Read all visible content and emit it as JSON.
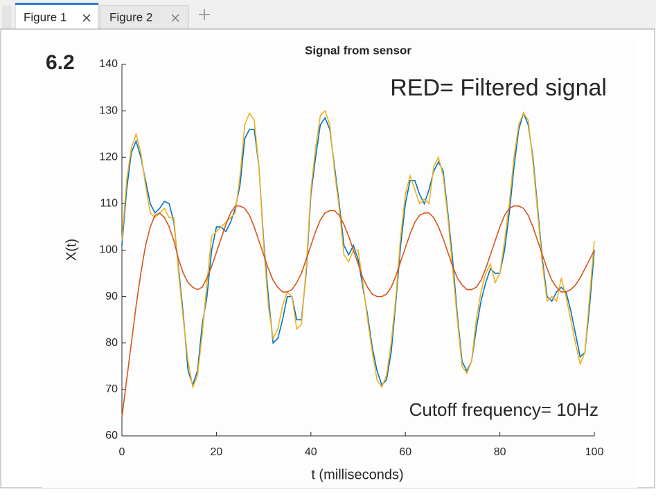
{
  "tabs": [
    "Figure 1",
    "Figure 2"
  ],
  "badge": "6.2",
  "chart_data": {
    "type": "line",
    "title": "Signal from sensor",
    "annotations": [
      "RED= Filtered signal",
      "Cutoff frequency= 10Hz"
    ],
    "xlabel": "t (milliseconds)",
    "ylabel": "X(t)",
    "x": [
      0,
      1,
      2,
      3,
      4,
      5,
      6,
      7,
      8,
      9,
      10,
      11,
      12,
      13,
      14,
      15,
      16,
      17,
      18,
      19,
      20,
      21,
      22,
      23,
      24,
      25,
      26,
      27,
      28,
      29,
      30,
      31,
      32,
      33,
      34,
      35,
      36,
      37,
      38,
      39,
      40,
      41,
      42,
      43,
      44,
      45,
      46,
      47,
      48,
      49,
      50,
      51,
      52,
      53,
      54,
      55,
      56,
      57,
      58,
      59,
      60,
      61,
      62,
      63,
      64,
      65,
      66,
      67,
      68,
      69,
      70,
      71,
      72,
      73,
      74,
      75,
      76,
      77,
      78,
      79,
      80,
      81,
      82,
      83,
      84,
      85,
      86,
      87,
      88,
      89,
      90,
      91,
      92,
      93,
      94,
      95,
      96,
      97,
      98,
      99,
      100
    ],
    "series": [
      {
        "color": "#0072bd",
        "values": [
          101,
          113,
          121,
          123.5,
          120,
          115,
          110,
          108,
          109,
          110.5,
          110,
          106,
          96,
          86,
          74,
          71,
          74,
          84,
          90,
          100,
          105,
          105,
          104,
          106,
          109,
          114,
          124,
          126,
          126,
          118,
          102,
          90,
          80,
          81,
          85,
          90,
          90,
          85,
          85,
          95,
          112,
          120,
          127,
          128.5,
          126,
          118,
          110,
          101,
          99,
          101,
          98,
          92,
          86,
          79,
          74,
          71,
          72,
          78,
          89,
          101,
          110,
          115,
          115,
          112,
          110,
          113,
          117,
          119,
          117,
          108,
          98,
          86,
          76,
          74,
          76,
          83,
          89,
          93,
          96,
          95,
          95,
          100,
          108,
          118,
          126,
          129.5,
          127,
          120,
          109,
          98,
          90,
          89,
          91,
          92,
          91,
          87,
          82,
          77,
          78,
          88,
          100
        ]
      },
      {
        "color": "#edb120",
        "values": [
          102,
          115,
          122,
          125,
          121,
          114,
          108,
          107,
          108,
          109,
          107,
          107,
          95,
          85,
          76,
          70.5,
          73,
          82,
          93,
          103,
          104,
          105,
          106,
          107,
          108,
          116,
          127,
          129.5,
          128,
          118,
          101,
          88,
          81,
          83,
          88,
          91,
          90,
          83,
          84,
          96,
          113,
          122,
          129,
          130,
          127,
          117,
          109,
          99,
          97.5,
          100,
          100,
          93,
          85,
          78,
          72,
          70.5,
          73,
          80,
          90,
          103,
          112,
          116,
          113,
          110,
          111,
          110,
          118,
          120,
          116,
          107,
          96,
          85,
          75,
          73.5,
          76,
          85,
          91,
          95,
          97,
          93,
          95,
          102,
          110,
          120,
          127,
          129.5,
          128,
          119,
          108,
          97,
          89,
          90,
          89,
          94,
          90,
          85,
          80,
          75.5,
          78,
          90,
          102
        ]
      },
      {
        "color": "#d95319",
        "values": [
          64,
          72,
          80,
          88,
          95,
          101,
          105,
          107.5,
          108,
          107,
          105,
          102,
          98,
          95,
          93,
          92,
          91.5,
          92,
          94,
          96.5,
          99.5,
          102.5,
          105.5,
          108,
          109.5,
          109.5,
          109,
          107.5,
          105,
          102,
          99,
          96,
          93.5,
          92,
          91,
          91,
          91.5,
          93,
          95,
          98,
          101,
          104,
          106.5,
          108,
          108.5,
          108.5,
          107.5,
          105.5,
          103,
          100,
          97,
          94,
          92,
          90.5,
          90,
          90,
          90.5,
          92,
          94.5,
          97.5,
          100.5,
          103.5,
          106,
          107.5,
          108,
          108,
          107,
          105,
          102.5,
          99.5,
          96.5,
          94,
          92.5,
          91.5,
          91.5,
          92,
          93.5,
          96,
          99,
          102,
          105,
          107.5,
          109,
          109.5,
          109.5,
          109,
          107.5,
          105,
          102,
          99,
          96,
          93.5,
          92,
          91,
          91,
          91.5,
          92.5,
          94,
          96,
          98,
          100
        ]
      }
    ],
    "xlim": [
      0,
      100
    ],
    "xticks": [
      0,
      20,
      40,
      60,
      80,
      100
    ],
    "ylim": [
      60,
      140
    ],
    "yticks": [
      60,
      70,
      80,
      90,
      100,
      110,
      120,
      130,
      140
    ]
  }
}
